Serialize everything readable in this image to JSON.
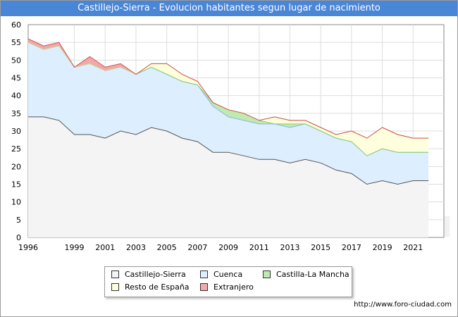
{
  "header": {
    "title": "Castillejo-Sierra - Evolucion habitantes segun lugar de nacimiento"
  },
  "footer": {
    "url": "http://www.foro-ciudad.com"
  },
  "watermark": "FORO-CIUDAD.COM",
  "chart_data": {
    "type": "area",
    "stacked": true,
    "title": "Castillejo-Sierra - Evolucion habitantes segun lugar de nacimiento",
    "xlabel": "",
    "ylabel": "",
    "x": [
      1996,
      1997,
      1998,
      1999,
      2000,
      2001,
      2002,
      2003,
      2004,
      2005,
      2006,
      2007,
      2008,
      2009,
      2010,
      2011,
      2012,
      2013,
      2014,
      2015,
      2016,
      2017,
      2018,
      2019,
      2020,
      2021,
      2022
    ],
    "xticks": [
      1996,
      1999,
      2001,
      2003,
      2005,
      2007,
      2009,
      2011,
      2013,
      2015,
      2017,
      2019,
      2021
    ],
    "yticks": [
      0,
      5,
      10,
      15,
      20,
      25,
      30,
      35,
      40,
      45,
      50,
      55,
      60
    ],
    "xlim": [
      1996,
      2023
    ],
    "ylim": [
      0,
      60
    ],
    "grid": true,
    "legend_position": "bottom",
    "series": [
      {
        "name": "Castillejo-Sierra",
        "color": "#f4f4f4",
        "line": "#555555",
        "values": [
          34,
          34,
          33,
          29,
          29,
          28,
          30,
          29,
          31,
          30,
          28,
          27,
          24,
          24,
          23,
          22,
          22,
          21,
          22,
          21,
          19,
          18,
          15,
          16,
          15,
          16,
          16
        ]
      },
      {
        "name": "Cuenca",
        "color": "#ddeeff",
        "line": "#8ab4e6",
        "values": [
          21,
          19,
          21,
          19,
          20,
          19,
          18,
          17,
          17,
          16,
          16,
          16,
          13,
          10,
          10,
          10,
          10,
          10,
          10,
          9,
          9,
          9,
          8,
          9,
          9,
          8,
          8
        ]
      },
      {
        "name": "Castilla-La Mancha",
        "color": "#bfeab0",
        "line": "#8ccf6e",
        "values": [
          0,
          0,
          0,
          0,
          0,
          0,
          0,
          0,
          0,
          0,
          0,
          0,
          1,
          2,
          2,
          1,
          0,
          1,
          0,
          0,
          0,
          0,
          0,
          0,
          0,
          0,
          0
        ]
      },
      {
        "name": "Resto de España",
        "color": "#ffffdd",
        "line": "#d8d8a0",
        "values": [
          0,
          0,
          0,
          0,
          0,
          0,
          0,
          0,
          1,
          3,
          2,
          1,
          0,
          0,
          0,
          0,
          2,
          1,
          1,
          1,
          1,
          3,
          5,
          6,
          5,
          4,
          4
        ]
      },
      {
        "name": "Extranjero",
        "color": "#f0a8a8",
        "line": "#d05050",
        "values": [
          1,
          1,
          1,
          0,
          2,
          1,
          1,
          0,
          0,
          0,
          0,
          0,
          0,
          0,
          0,
          0,
          0,
          0,
          0,
          0,
          0,
          0,
          0,
          0,
          0,
          0,
          0
        ]
      }
    ]
  }
}
